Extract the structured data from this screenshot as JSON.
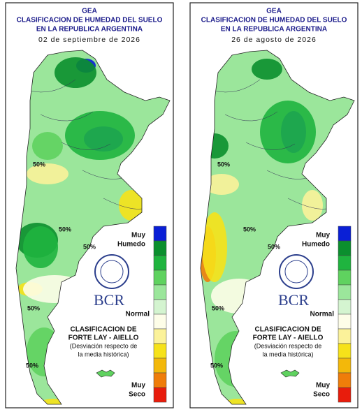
{
  "panels": [
    {
      "header": {
        "org": "GEA",
        "line1": "CLASIFICACION DE HUMEDAD DEL SUELO",
        "line2": "EN LA REPUBLICA ARGENTINA",
        "date": "02 de septiembre de 2026"
      },
      "legend": {
        "wet": [
          "Muy",
          "Humedo"
        ],
        "normal": "Normal",
        "dry": [
          "Muy",
          "Seco"
        ]
      },
      "logo": "BCR",
      "method": [
        "CLASIFICACION DE",
        "FORTE LAY - AIELLO",
        "(Desviación respecto de",
        "la media histórica)"
      ],
      "contour_labels": [
        "50%",
        "50%",
        "50%",
        "50%",
        "50%"
      ]
    },
    {
      "header": {
        "org": "GEA",
        "line1": "CLASIFICACION DE HUMEDAD DEL SUELO",
        "line2": "EN LA REPUBLICA ARGENTINA",
        "date": "26 de agosto de 2026"
      },
      "legend": {
        "wet": [
          "Muy",
          "Humedo"
        ],
        "normal": "Normal",
        "dry": [
          "Muy",
          "Seco"
        ]
      },
      "logo": "BCR",
      "method": [
        "CLASIFICACION DE",
        "FORTE LAY - AIELLO",
        "(Desviación respecto de",
        "la media histórica)"
      ],
      "contour_labels": [
        "50%",
        "50%",
        "50%",
        "50%",
        "50%"
      ]
    }
  ]
}
